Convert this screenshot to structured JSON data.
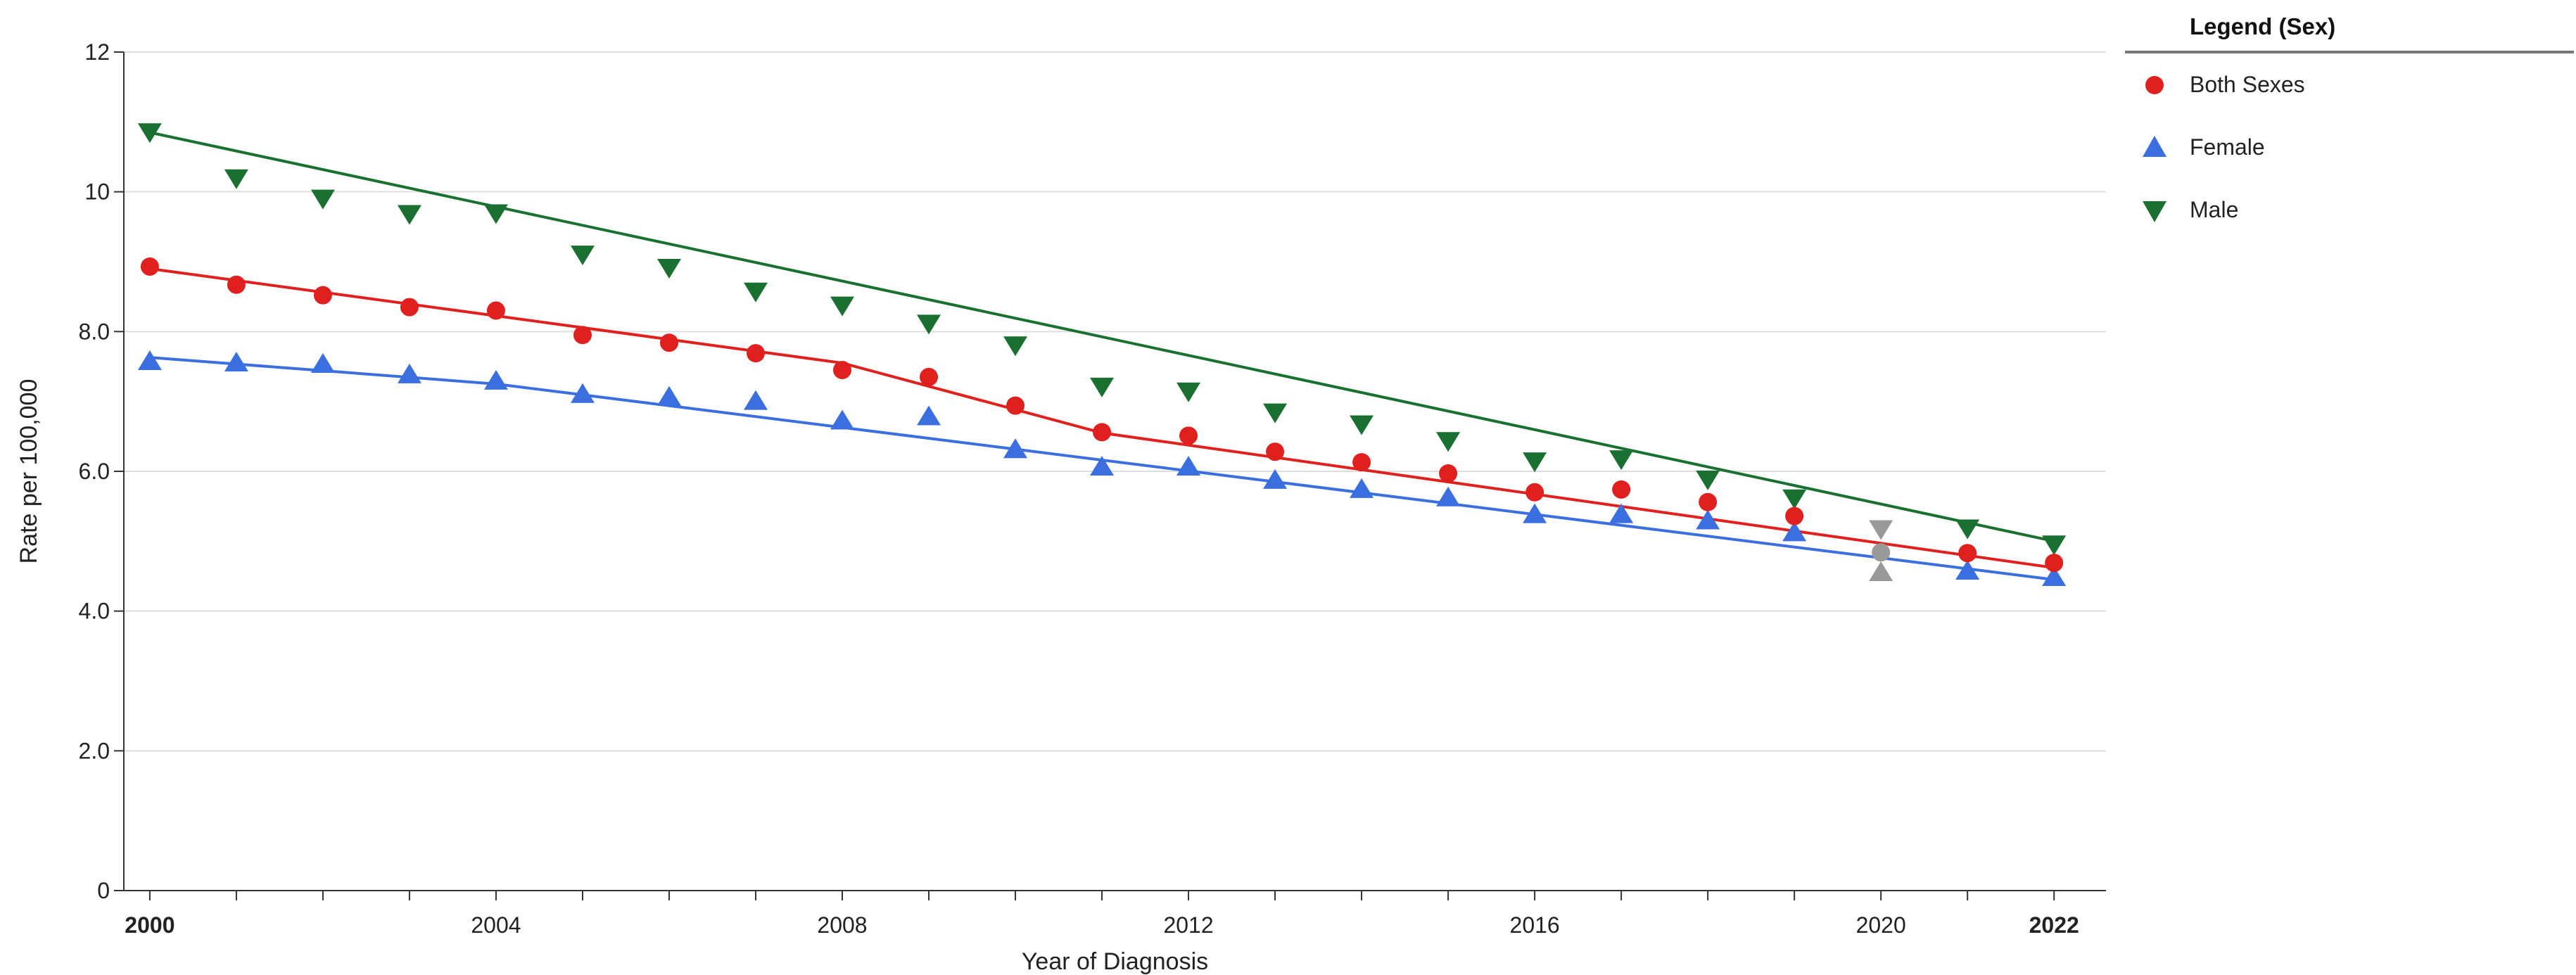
{
  "chart_data": {
    "type": "line",
    "title": "",
    "xlabel": "Year of Diagnosis",
    "ylabel": "Rate per 100,000",
    "xlim": [
      1999.7,
      2022.6
    ],
    "ylim": [
      0,
      12
    ],
    "x_ticks": [
      {
        "value": 2000,
        "label": "2000",
        "bold": true
      },
      {
        "value": 2004,
        "label": "2004",
        "bold": false
      },
      {
        "value": 2008,
        "label": "2008",
        "bold": false
      },
      {
        "value": 2012,
        "label": "2012",
        "bold": false
      },
      {
        "value": 2016,
        "label": "2016",
        "bold": false
      },
      {
        "value": 2020,
        "label": "2020",
        "bold": false
      },
      {
        "value": 2022,
        "label": "2022",
        "bold": true
      }
    ],
    "y_ticks": [
      {
        "value": 0,
        "label": "0"
      },
      {
        "value": 2,
        "label": "2.0"
      },
      {
        "value": 4,
        "label": "4.0"
      },
      {
        "value": 6,
        "label": "6.0"
      },
      {
        "value": 8,
        "label": "8.0"
      },
      {
        "value": 10,
        "label": "10"
      },
      {
        "value": 12,
        "label": "12"
      }
    ],
    "grid": true,
    "legend_position": "right",
    "highlight_year": 2020,
    "highlight_color": "#999999",
    "x": [
      2000,
      2001,
      2002,
      2003,
      2004,
      2005,
      2006,
      2007,
      2008,
      2009,
      2010,
      2011,
      2012,
      2013,
      2014,
      2015,
      2016,
      2017,
      2018,
      2019,
      2020,
      2021,
      2022
    ],
    "series": [
      {
        "name": "Both Sexes",
        "marker": "circle",
        "color": "#e0201f",
        "values": [
          8.93,
          8.67,
          8.52,
          8.35,
          8.3,
          7.95,
          7.84,
          7.69,
          7.45,
          7.35,
          6.94,
          6.56,
          6.51,
          6.28,
          6.13,
          5.97,
          5.7,
          5.74,
          5.56,
          5.36,
          4.84,
          4.83,
          4.69
        ],
        "trend": [
          [
            2000,
            8.9
          ],
          [
            2008,
            7.55
          ],
          [
            2011,
            6.55
          ],
          [
            2022,
            4.62
          ]
        ]
      },
      {
        "name": "Female",
        "marker": "triangle-up",
        "color": "#3b6fe0",
        "values": [
          7.57,
          7.55,
          7.53,
          7.38,
          7.29,
          7.1,
          7.06,
          7.0,
          6.72,
          6.78,
          6.31,
          6.06,
          6.06,
          5.87,
          5.74,
          5.62,
          5.38,
          5.38,
          5.29,
          5.12,
          4.55,
          4.57,
          4.48
        ],
        "trend": [
          [
            2000,
            7.63
          ],
          [
            2004,
            7.25
          ],
          [
            2022,
            4.45
          ]
        ]
      },
      {
        "name": "Male",
        "marker": "triangle-down",
        "color": "#1a7030",
        "values": [
          10.86,
          10.2,
          9.91,
          9.69,
          9.7,
          9.11,
          8.92,
          8.58,
          8.38,
          8.12,
          7.81,
          7.22,
          7.15,
          6.85,
          6.68,
          6.44,
          6.15,
          6.18,
          5.89,
          5.62,
          5.18,
          5.19,
          4.96
        ],
        "trend": [
          [
            2000,
            10.85
          ],
          [
            2022,
            5.0
          ]
        ]
      }
    ]
  },
  "legend": {
    "title": "Legend (Sex)",
    "items": [
      {
        "label": "Both Sexes",
        "marker": "circle",
        "color": "#e0201f"
      },
      {
        "label": "Female",
        "marker": "triangle-up",
        "color": "#3b6fe0"
      },
      {
        "label": "Male",
        "marker": "triangle-down",
        "color": "#1a7030"
      }
    ]
  }
}
